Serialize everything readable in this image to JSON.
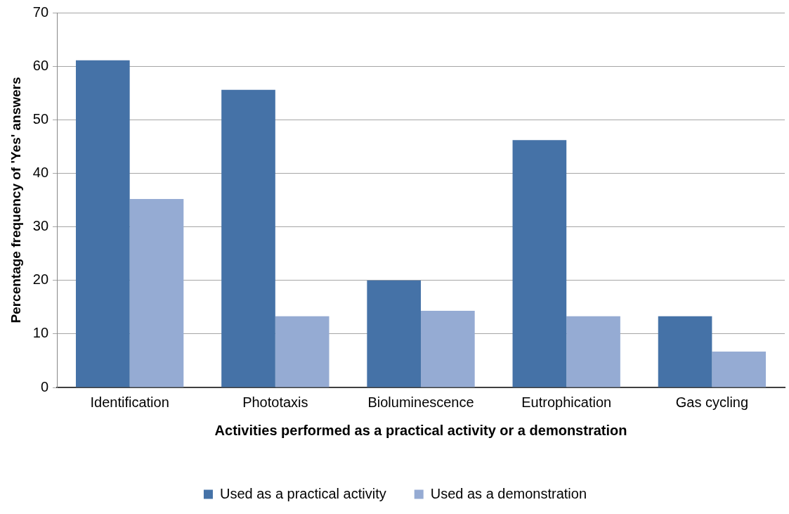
{
  "chart_data": {
    "type": "bar",
    "xlabel": "Activities performed as a practical activity or a demonstration",
    "ylabel": "Percentage frequency of 'Yes' answers",
    "categories": [
      "Identification",
      "Phototaxis",
      "Bioluminescence",
      "Eutrophication",
      "Gas cycling"
    ],
    "series": [
      {
        "name": "Used as a practical activity",
        "color": "#4572a7",
        "values": [
          61.1,
          55.6,
          20.0,
          46.2,
          13.3
        ]
      },
      {
        "name": "Used as a demonstration",
        "color": "#95abd3",
        "values": [
          35.2,
          13.3,
          14.3,
          13.3,
          6.7
        ]
      }
    ],
    "ylim": [
      0,
      70
    ],
    "yticks": [
      0,
      10,
      20,
      30,
      40,
      50,
      60,
      70
    ],
    "grid": "y",
    "legend": "bottom"
  }
}
